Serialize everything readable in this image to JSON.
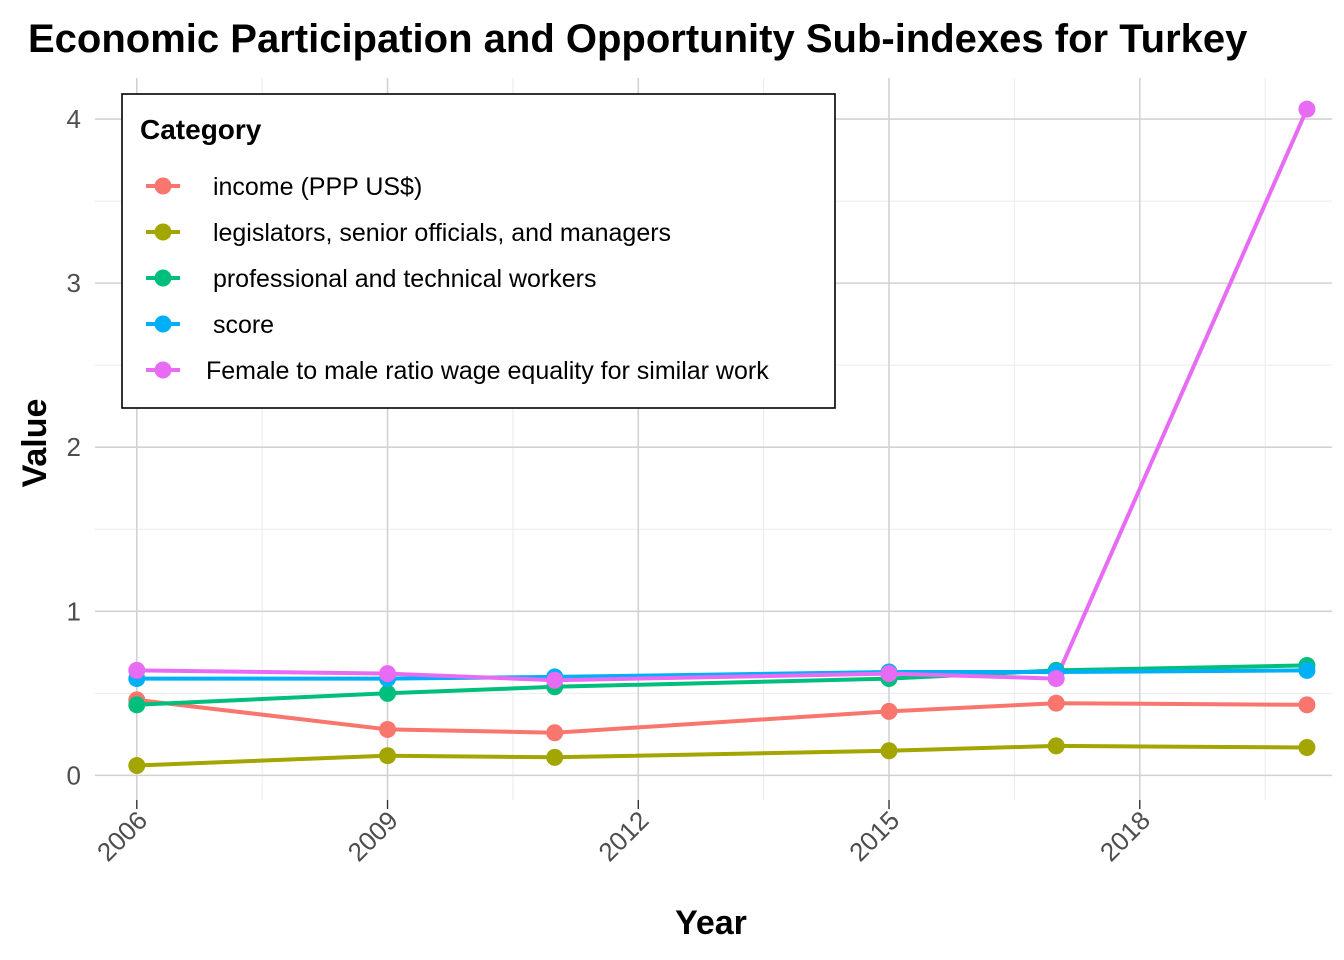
{
  "chart_data": {
    "type": "line",
    "title": "Economic Participation and Opportunity Sub-indexes for Turkey",
    "xlabel": "Year",
    "ylabel": "Value",
    "xlim": [
      2005.5,
      2020.3
    ],
    "ylim": [
      -0.15,
      4.25
    ],
    "x_ticks": [
      2006,
      2009,
      2012,
      2015,
      2018
    ],
    "y_ticks": [
      0,
      1,
      2,
      3,
      4
    ],
    "grid": true,
    "legend": {
      "title": "Category",
      "position": "top-left"
    },
    "x": [
      2006,
      2009,
      2011,
      2015,
      2017,
      2020
    ],
    "series": [
      {
        "name": " income (PPP US$)",
        "color": "#F8766D",
        "values": [
          0.46,
          0.28,
          0.26,
          0.39,
          0.44,
          0.43
        ]
      },
      {
        "name": " legislators, senior officials, and managers",
        "color": "#A3A500",
        "values": [
          0.06,
          0.12,
          0.11,
          0.15,
          0.18,
          0.17
        ]
      },
      {
        "name": " professional and technical workers",
        "color": "#00BF7D",
        "values": [
          0.43,
          0.5,
          0.54,
          0.59,
          0.64,
          0.67
        ]
      },
      {
        "name": " score",
        "color": "#00B0F6",
        "values": [
          0.59,
          0.59,
          0.6,
          0.63,
          0.63,
          0.64
        ]
      },
      {
        "name": "Female to male ratio wage equality for similar work",
        "color": "#E76BF3",
        "values": [
          0.64,
          0.62,
          0.58,
          0.62,
          0.59,
          4.06
        ]
      }
    ]
  }
}
